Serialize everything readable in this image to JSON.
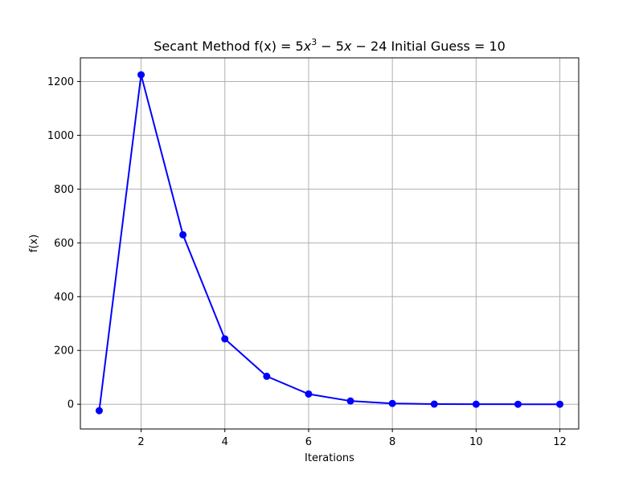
{
  "chart_data": {
    "type": "line",
    "title_prefix": "Secant Method f(x) = 5",
    "title_x1": "x",
    "title_exp": "3",
    "title_minus1": " − 5",
    "title_x2": "x",
    "title_rest": " − 24 Initial Guess = 10",
    "xlabel": "Iterations",
    "ylabel": "f(x)",
    "xlim": [
      0.55,
      12.45
    ],
    "ylim": [
      -92,
      1288
    ],
    "xticks": [
      2,
      4,
      6,
      8,
      10,
      12
    ],
    "yticks": [
      0,
      200,
      400,
      600,
      800,
      1000,
      1200
    ],
    "grid": true,
    "color": "#0000ff",
    "x": [
      1,
      2,
      3,
      4,
      5,
      6,
      7,
      8,
      9,
      10,
      11,
      12
    ],
    "y": [
      -24,
      1225,
      630,
      243,
      104,
      38,
      12,
      3,
      0.5,
      0.1,
      0.02,
      0
    ]
  }
}
